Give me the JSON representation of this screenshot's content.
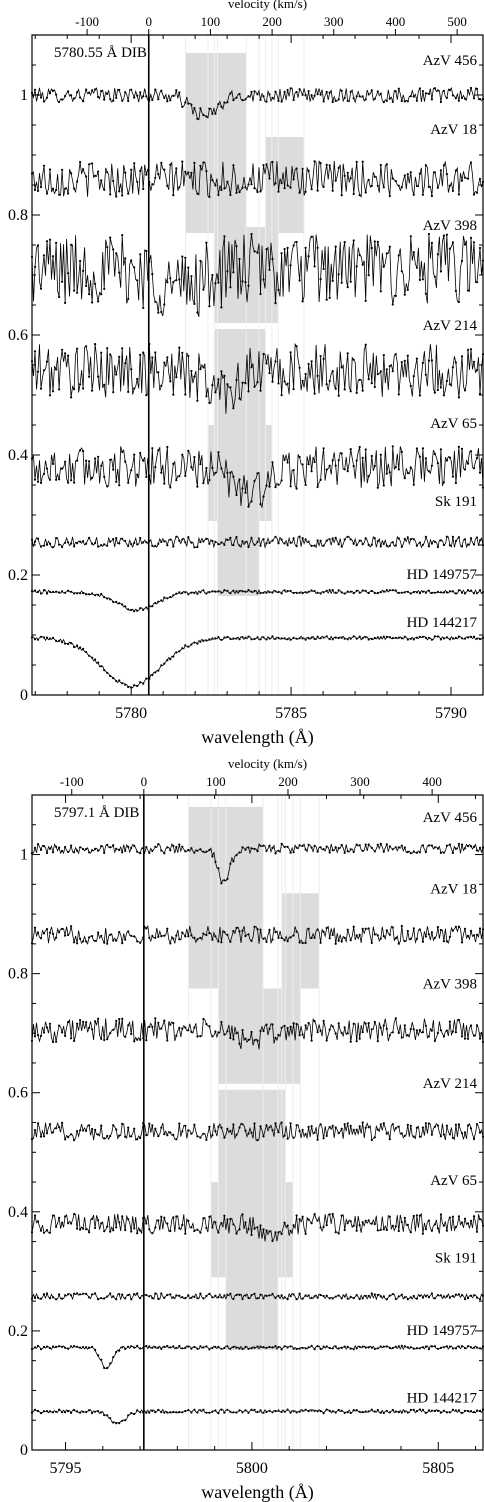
{
  "chart_data": [
    {
      "type": "line",
      "title": "5780.55 Å DIB",
      "xlabel": "wavelength (Å)",
      "top_xlabel": "velocity (km/s)",
      "xlim": [
        5776.9,
        5791.0
      ],
      "ylim": [
        0,
        1.1
      ],
      "rest_wavelength": 5780.55,
      "vlim": [
        -205,
        540
      ],
      "xticks": [
        5780,
        5785,
        5790
      ],
      "yticks": [
        0,
        0.2,
        0.4,
        0.6,
        0.8,
        1
      ],
      "vticks": [
        -100,
        0,
        100,
        200,
        300,
        400,
        500
      ],
      "spectra": [
        {
          "name": "AzV 456",
          "level": 1.0,
          "noise": 0.012,
          "features": [
            {
              "center": 5782.3,
              "depth": 0.035,
              "width": 0.6
            }
          ],
          "shade": [
            [
              5781.7,
              5783.6
            ]
          ],
          "label_y": 1.05
        },
        {
          "name": "AzV 18",
          "level": 0.86,
          "noise": 0.03,
          "features": [],
          "shade": [
            [
              5781.7,
              5783.6
            ],
            [
              5784.2,
              5785.4
            ]
          ],
          "label_y": 0.935
        },
        {
          "name": "AzV 398",
          "level": 0.71,
          "noise": 0.06,
          "features": [
            {
              "center": 5781.5,
              "depth": 0.03,
              "width": 1.0
            }
          ],
          "shade": [
            [
              5782.6,
              5784.6
            ]
          ],
          "label_y": 0.775
        },
        {
          "name": "AzV 214",
          "level": 0.54,
          "noise": 0.045,
          "features": [
            {
              "center": 5782.8,
              "depth": 0.03,
              "width": 0.7
            }
          ],
          "shade": [
            [
              5782.6,
              5784.2
            ]
          ],
          "label_y": 0.608
        },
        {
          "name": "AzV 65",
          "level": 0.38,
          "noise": 0.035,
          "features": [
            {
              "center": 5783.8,
              "depth": 0.04,
              "width": 0.9
            }
          ],
          "shade": [
            [
              5782.4,
              5784.4
            ]
          ],
          "label_y": 0.445
        },
        {
          "name": "Sk 191",
          "level": 0.255,
          "noise": 0.009,
          "features": [],
          "shade": [
            [
              5782.7,
              5784.0
            ]
          ],
          "label_y": 0.315
        },
        {
          "name": "HD 149757",
          "level": 0.172,
          "noise": 0.003,
          "features": [
            {
              "center": 5780.2,
              "depth": 0.03,
              "width": 0.9
            }
          ],
          "shade": [],
          "label_y": 0.193
        },
        {
          "name": "HD 144217",
          "level": 0.095,
          "noise": 0.003,
          "features": [
            {
              "center": 5780.0,
              "depth": 0.08,
              "width": 1.3
            }
          ],
          "shade": [],
          "label_y": 0.113
        }
      ]
    },
    {
      "type": "line",
      "title": "5797.1 Å DIB",
      "xlabel": "wavelength (Å)",
      "top_xlabel": "velocity (km/s)",
      "xlim": [
        5794.1,
        5806.2
      ],
      "ylim": [
        0,
        1.1
      ],
      "rest_wavelength": 5797.1,
      "vlim": [
        -155,
        470
      ],
      "xticks": [
        5795,
        5800,
        5805
      ],
      "yticks": [
        0,
        0.2,
        0.4,
        0.6,
        0.8,
        1
      ],
      "vticks": [
        -100,
        0,
        100,
        200,
        300,
        400
      ],
      "spectra": [
        {
          "name": "AzV 456",
          "level": 1.01,
          "noise": 0.008,
          "features": [
            {
              "center": 5799.25,
              "depth": 0.06,
              "width": 0.22
            }
          ],
          "shade": [
            [
              5798.3,
              5800.3
            ]
          ],
          "label_y": 1.055
        },
        {
          "name": "AzV 18",
          "level": 0.865,
          "noise": 0.015,
          "features": [],
          "shade": [
            [
              5798.3,
              5800.3
            ],
            [
              5800.8,
              5801.8
            ]
          ],
          "label_y": 0.935
        },
        {
          "name": "AzV 398",
          "level": 0.705,
          "noise": 0.02,
          "features": [
            {
              "center": 5800.0,
              "depth": 0.015,
              "width": 0.6
            }
          ],
          "shade": [
            [
              5799.1,
              5801.3
            ]
          ],
          "label_y": 0.775
        },
        {
          "name": "AzV 214",
          "level": 0.535,
          "noise": 0.015,
          "features": [],
          "shade": [
            [
              5799.1,
              5800.9
            ]
          ],
          "label_y": 0.608
        },
        {
          "name": "AzV 65",
          "level": 0.38,
          "noise": 0.017,
          "features": [
            {
              "center": 5800.5,
              "depth": 0.02,
              "width": 0.4
            }
          ],
          "shade": [
            [
              5798.9,
              5801.1
            ]
          ],
          "label_y": 0.445
        },
        {
          "name": "Sk 191",
          "level": 0.258,
          "noise": 0.005,
          "features": [],
          "shade": [
            [
              5799.3,
              5800.7
            ]
          ],
          "label_y": 0.315
        },
        {
          "name": "HD 149757",
          "level": 0.172,
          "noise": 0.003,
          "features": [
            {
              "center": 5796.1,
              "depth": 0.035,
              "width": 0.22
            }
          ],
          "shade": [],
          "label_y": 0.193
        },
        {
          "name": "HD 144217",
          "level": 0.065,
          "noise": 0.003,
          "features": [
            {
              "center": 5796.4,
              "depth": 0.02,
              "width": 0.3
            }
          ],
          "shade": [],
          "label_y": 0.08
        }
      ]
    }
  ]
}
